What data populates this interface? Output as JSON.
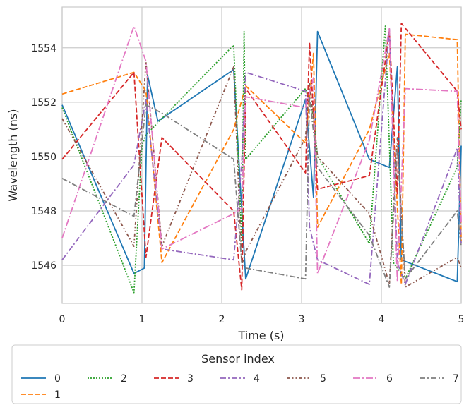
{
  "chart_data": {
    "type": "line",
    "xlabel": "Time (s)",
    "ylabel": "Wavelength (ns)",
    "xlim": [
      0,
      5
    ],
    "ylim": [
      1544.6,
      1555.5
    ],
    "x_ticks": [
      "0",
      "1",
      "2",
      "3",
      "4",
      "5"
    ],
    "y_ticks": [
      "1546",
      "1548",
      "1550",
      "1552",
      "1554"
    ],
    "grid": true,
    "legend": {
      "title": "Sensor index",
      "placement": "bottom",
      "entries": [
        "0",
        "2",
        "3",
        "4",
        "5",
        "6",
        "7",
        "1"
      ]
    },
    "series": [
      {
        "name": "0",
        "color": "#1f77b4",
        "dash": "solid",
        "x": [
          0,
          0.9,
          1.03,
          1.07,
          1.2,
          2.15,
          2.3,
          3.05,
          3.15,
          3.2,
          3.85,
          4.1,
          4.2,
          4.25,
          4.95,
          5.0
        ],
        "y": [
          1551.9,
          1545.7,
          1545.9,
          1553.0,
          1551.3,
          1553.2,
          1545.5,
          1552.1,
          1548.5,
          1554.6,
          1549.9,
          1549.6,
          1553.3,
          1546.2,
          1545.4,
          1550.4
        ]
      },
      {
        "name": "1",
        "color": "#ff7f0e",
        "dash": "dashed",
        "x": [
          0,
          0.9,
          1.05,
          1.25,
          2.15,
          2.3,
          3.05,
          3.15,
          3.2,
          3.85,
          4.1,
          4.25,
          4.3,
          4.95,
          5.0
        ],
        "y": [
          1552.3,
          1553.1,
          1552.4,
          1546.1,
          1551.0,
          1552.6,
          1550.5,
          1553.8,
          1547.4,
          1551.0,
          1553.8,
          1545.3,
          1554.5,
          1554.3,
          1546.9
        ]
      },
      {
        "name": "2",
        "color": "#2ca02c",
        "dash": "dotted",
        "x": [
          0,
          0.9,
          1.0,
          1.05,
          2.15,
          2.25,
          2.28,
          2.3,
          3.05,
          3.15,
          3.2,
          3.85,
          4.05,
          4.15,
          4.3,
          4.95,
          5.0
        ],
        "y": [
          1551.8,
          1545.0,
          1550.4,
          1550.8,
          1554.1,
          1546.8,
          1554.6,
          1549.9,
          1552.5,
          1551.5,
          1550.0,
          1546.8,
          1554.8,
          1546.1,
          1545.5,
          1549.6,
          1552.1
        ]
      },
      {
        "name": "3",
        "color": "#d62728",
        "dash": "dashed",
        "x": [
          0,
          0.9,
          1.05,
          1.25,
          2.15,
          2.25,
          2.3,
          3.05,
          3.1,
          3.2,
          3.85,
          4.1,
          4.2,
          4.25,
          4.95,
          5.0
        ],
        "y": [
          1549.9,
          1553.1,
          1546.3,
          1550.7,
          1548.0,
          1545.1,
          1552.5,
          1549.4,
          1554.2,
          1548.8,
          1549.3,
          1554.6,
          1548.6,
          1554.9,
          1552.4,
          1551.0
        ]
      },
      {
        "name": "4",
        "color": "#9467bd",
        "dash": "dashdot",
        "x": [
          0,
          0.9,
          1.05,
          1.25,
          2.15,
          2.25,
          2.3,
          3.05,
          3.1,
          3.2,
          3.85,
          4.1,
          4.2,
          4.3,
          4.95,
          5.0
        ],
        "y": [
          1546.2,
          1549.7,
          1552.1,
          1546.6,
          1546.2,
          1549.8,
          1553.1,
          1552.4,
          1547.4,
          1546.2,
          1545.3,
          1554.7,
          1546.1,
          1545.3,
          1550.3,
          1546.8
        ]
      },
      {
        "name": "5",
        "color": "#8c564b",
        "dash": "dashdotdot",
        "x": [
          0,
          0.9,
          1.05,
          1.25,
          2.15,
          2.25,
          2.3,
          3.05,
          3.1,
          3.2,
          3.85,
          4.1,
          4.2,
          4.3,
          4.95,
          5.0
        ],
        "y": [
          1551.4,
          1546.7,
          1553.5,
          1546.7,
          1553.3,
          1546.0,
          1546.5,
          1550.7,
          1552.7,
          1550.0,
          1547.9,
          1545.3,
          1550.7,
          1545.2,
          1546.3,
          1545.9
        ]
      },
      {
        "name": "6",
        "color": "#e377c2",
        "dash": "longdashdot",
        "x": [
          0,
          0.9,
          1.05,
          1.25,
          2.15,
          2.25,
          2.3,
          3.05,
          3.15,
          3.2,
          3.85,
          4.1,
          4.2,
          4.3,
          4.95,
          5.0
        ],
        "y": [
          1547.0,
          1554.8,
          1553.5,
          1546.6,
          1547.9,
          1548.1,
          1552.2,
          1551.8,
          1552.9,
          1545.7,
          1550.6,
          1554.7,
          1545.4,
          1552.5,
          1552.4,
          1547.6
        ]
      },
      {
        "name": "7",
        "color": "#7f7f7f",
        "dash": "dashdot",
        "x": [
          0,
          0.9,
          1.05,
          1.25,
          2.15,
          2.25,
          2.3,
          3.05,
          3.1,
          3.2,
          3.85,
          4.1,
          4.2,
          4.3,
          4.95,
          5.0
        ],
        "y": [
          1549.2,
          1547.8,
          1551.9,
          1551.6,
          1549.9,
          1546.1,
          1545.9,
          1545.5,
          1552.2,
          1549.6,
          1547.1,
          1545.2,
          1550.3,
          1545.5,
          1548.0,
          1546.7
        ]
      }
    ]
  }
}
